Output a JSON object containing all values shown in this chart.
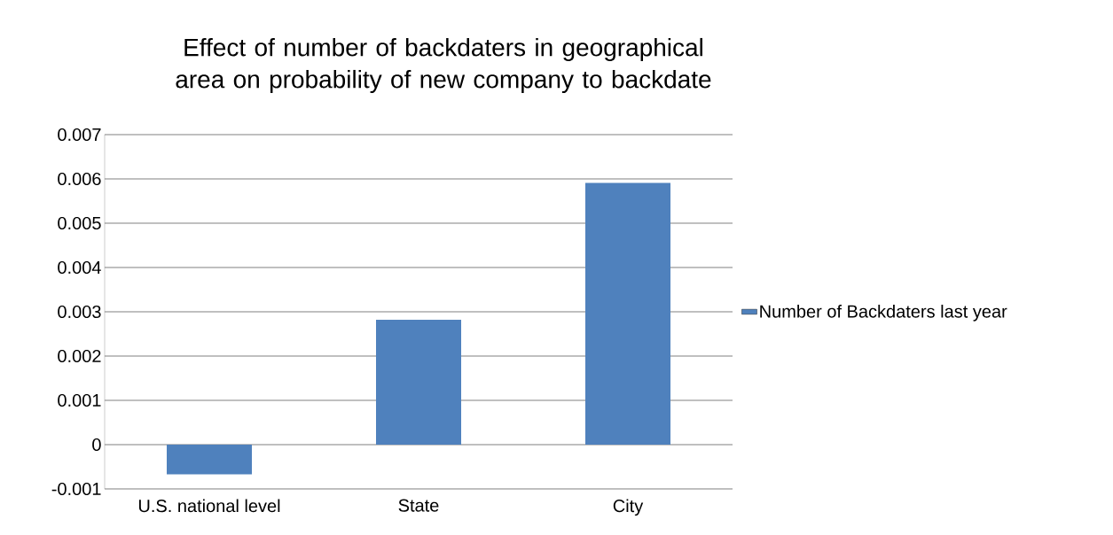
{
  "chart_data": {
    "type": "bar",
    "title": "Effect of number of backdaters in geographical area on probability of new company to backdate",
    "categories": [
      "U.S. national level",
      "State",
      "City"
    ],
    "series": [
      {
        "name": "Number of Backdaters last year",
        "color": "#4f81bd",
        "values": [
          -0.00067,
          0.00282,
          0.00591
        ]
      }
    ],
    "ylim": [
      -0.001,
      0.007
    ],
    "yticks": [
      -0.001,
      0,
      0.001,
      0.002,
      0.003,
      0.004,
      0.005,
      0.006,
      0.007
    ],
    "grid": "y",
    "legend": "right"
  }
}
